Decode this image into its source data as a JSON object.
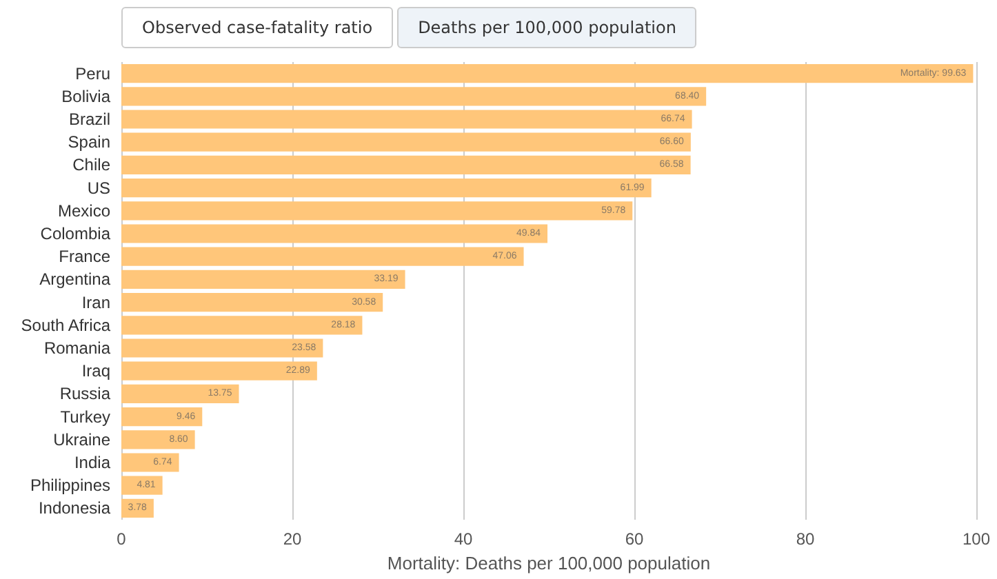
{
  "chart_data": {
    "type": "bar",
    "orientation": "horizontal",
    "categories": [
      "Peru",
      "Bolivia",
      "Brazil",
      "Spain",
      "Chile",
      "US",
      "Mexico",
      "Colombia",
      "France",
      "Argentina",
      "Iran",
      "South Africa",
      "Romania",
      "Iraq",
      "Russia",
      "Turkey",
      "Ukraine",
      "India",
      "Philippines",
      "Indonesia"
    ],
    "values": [
      99.63,
      68.4,
      66.74,
      66.6,
      66.58,
      61.99,
      59.78,
      49.84,
      47.06,
      33.19,
      30.58,
      28.18,
      23.58,
      22.89,
      13.75,
      9.46,
      8.6,
      6.74,
      4.81,
      3.78
    ],
    "value_labels": [
      "Mortality: 99.63",
      "68.40",
      "66.74",
      "66.60",
      "66.58",
      "61.99",
      "59.78",
      "49.84",
      "47.06",
      "33.19",
      "30.58",
      "28.18",
      "23.58",
      "22.89",
      "13.75",
      "9.46",
      "8.60",
      "6.74",
      "4.81",
      "3.78"
    ],
    "color": "#ffc67a",
    "xlim": [
      0,
      100
    ],
    "xticks": [
      0,
      20,
      40,
      60,
      80,
      100
    ],
    "grid": "x",
    "xlabel": "Mortality: Deaths per 100,000 population",
    "annotations": [
      "Observed case-fatality ratio",
      "Deaths per 100,000 population"
    ]
  }
}
